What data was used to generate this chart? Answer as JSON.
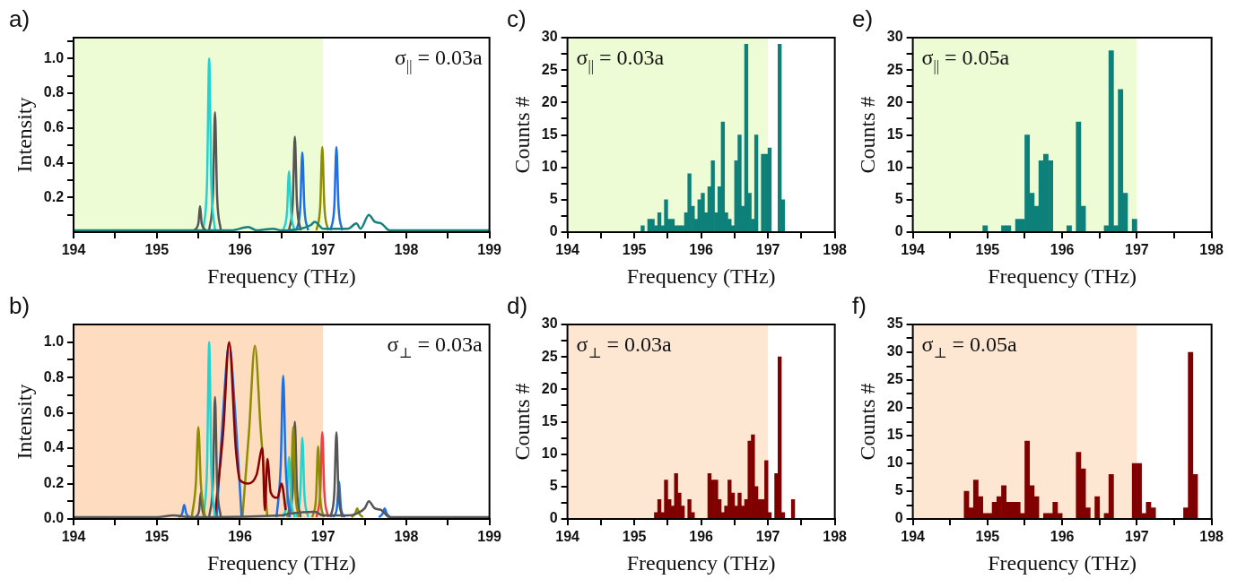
{
  "chart_data": [
    {
      "type": "line",
      "title": "a)",
      "xlabel": "Frequency (THz)",
      "ylabel": "Intensity",
      "annotations": [
        "σ$_{||}$ = 0.03a"
      ],
      "bands": [
        {
          "axis": "x",
          "from": 194,
          "to": 197,
          "color": "#eefcd6"
        }
      ],
      "xlim": [
        194,
        199
      ],
      "xticks": [
        194,
        {
          "value": 194.5,
          "label": null
        },
        195,
        {
          "value": 195.5,
          "label": null
        },
        196,
        {
          "value": 196.5,
          "label": null
        },
        197,
        {
          "value": 197.5,
          "label": null
        },
        198,
        {
          "value": 198.5,
          "label": null
        },
        199
      ],
      "ylim": [
        0,
        1.12
      ],
      "yticks": [
        {
          "value": 0.1,
          "label": null
        },
        {
          "value": 0.2,
          "label": "0.2"
        },
        {
          "value": 0.3,
          "label": null
        },
        {
          "value": 0.4,
          "label": "0.4"
        },
        {
          "value": 0.5,
          "label": null
        },
        {
          "value": 0.6,
          "label": "0.6"
        },
        {
          "value": 0.7,
          "label": null
        },
        {
          "value": 0.8,
          "label": "0.8"
        },
        {
          "value": 0.9,
          "label": null
        },
        {
          "value": 1,
          "label": "1.0"
        },
        {
          "value": 1.1,
          "label": null
        }
      ],
      "series": [
        {
          "color": "#15817c",
          "x": [
            194,
            195,
            195.5,
            195.9,
            196.1,
            196.2,
            196.4,
            196.5,
            196.85,
            196.9,
            197,
            197.3,
            197.4,
            197.45,
            197.55,
            197.62,
            197.7,
            197.8,
            198,
            199
          ],
          "values": [
            0.01,
            0.01,
            0.01,
            0.01,
            0.03,
            0.01,
            0.02,
            0.01,
            0.04,
            0.06,
            0.02,
            0.02,
            0.05,
            0.02,
            0.1,
            0.06,
            0.05,
            0.01,
            0.01,
            0.01
          ]
        },
        {
          "color": "#555555",
          "x": [
            195.45,
            195.5,
            195.52,
            195.54,
            195.59
          ],
          "values": [
            0.01,
            0.05,
            0.15,
            0.05,
            0.01
          ]
        },
        {
          "color": "#22d3cf",
          "x": [
            195.56,
            195.605,
            195.63,
            195.655,
            195.7
          ],
          "values": [
            0.01,
            0.3,
            1.0,
            0.3,
            0.01
          ]
        },
        {
          "color": "#555555",
          "x": [
            195.63,
            195.675,
            195.7,
            195.725,
            195.77
          ],
          "values": [
            0.01,
            0.21,
            0.69,
            0.21,
            0.01
          ]
        },
        {
          "color": "#22d3cf",
          "x": [
            196.52,
            196.565,
            196.59,
            196.615,
            196.66
          ],
          "values": [
            0.01,
            0.11,
            0.35,
            0.11,
            0.01
          ]
        },
        {
          "color": "#555555",
          "x": [
            196.59,
            196.635,
            196.66,
            196.685,
            196.73
          ],
          "values": [
            0.01,
            0.17,
            0.55,
            0.17,
            0.01
          ]
        },
        {
          "color": "#1f6fe3",
          "x": [
            196.68,
            196.725,
            196.75,
            196.775,
            196.82
          ],
          "values": [
            0.01,
            0.14,
            0.46,
            0.14,
            0.01
          ]
        },
        {
          "color": "#8e8c00",
          "x": [
            196.92,
            196.965,
            196.99,
            197.015,
            197.06
          ],
          "values": [
            0.01,
            0.15,
            0.49,
            0.15,
            0.01
          ]
        },
        {
          "color": "#1f6fe3",
          "x": [
            197.09,
            197.135,
            197.16,
            197.185,
            197.23
          ],
          "values": [
            0.01,
            0.15,
            0.49,
            0.15,
            0.01
          ]
        }
      ]
    },
    {
      "type": "histogram",
      "title": "c)",
      "xlabel": "Frequency (THz)",
      "ylabel": "Counts #",
      "annotations": [
        "σ$_{||}$ = 0.03a"
      ],
      "color": "#0e807a",
      "bands": [
        {
          "axis": "x",
          "from": 194,
          "to": 197,
          "color": "#eefcd6"
        }
      ],
      "xlim": [
        194,
        198
      ],
      "xticks": [
        194,
        {
          "value": 194.5,
          "label": null
        },
        195,
        {
          "value": 195.5,
          "label": null
        },
        196,
        {
          "value": 196.5,
          "label": null
        },
        197,
        {
          "value": 197.5,
          "label": null
        },
        198
      ],
      "ylim": [
        0,
        30
      ],
      "yticks": [
        0,
        {
          "value": 2.5,
          "label": null
        },
        5,
        {
          "value": 7.5,
          "label": null
        },
        10,
        {
          "value": 12.5,
          "label": null
        },
        15,
        {
          "value": 17.5,
          "label": null
        },
        20,
        {
          "value": 22.5,
          "label": null
        },
        25,
        {
          "value": 27.5,
          "label": null
        },
        30
      ],
      "bins": [
        195.1,
        195.15,
        195.2,
        195.25,
        195.3,
        195.35,
        195.4,
        195.45,
        195.5,
        195.55,
        195.6,
        195.65,
        195.7,
        195.75,
        195.8,
        195.85,
        195.9,
        195.95,
        196,
        196.05,
        196.1,
        196.15,
        196.2,
        196.25,
        196.3,
        196.35,
        196.4,
        196.45,
        196.5,
        196.55,
        196.6,
        196.65,
        196.7,
        196.75,
        196.8,
        196.85,
        196.9,
        196.95,
        197,
        197.05,
        197.1,
        197.15,
        197.2,
        197.25,
        197.3
      ],
      "values": [
        1,
        0,
        2,
        2,
        1,
        3,
        1,
        5,
        2,
        2,
        1,
        1,
        1,
        3,
        9,
        4,
        2,
        5,
        6,
        3,
        7,
        11,
        3,
        7,
        17,
        3,
        2,
        1,
        11,
        15,
        4,
        29,
        6,
        2,
        15,
        0,
        12,
        12,
        13,
        0,
        0,
        29,
        5,
        0
      ]
    },
    {
      "type": "histogram",
      "title": "e)",
      "xlabel": "Frequency (THz)",
      "ylabel": "Counts #",
      "annotations": [
        "σ$_{||}$ = 0.05a"
      ],
      "color": "#0e807a",
      "bands": [
        {
          "axis": "x",
          "from": 194,
          "to": 197,
          "color": "#eefcd6"
        }
      ],
      "xlim": [
        194,
        198
      ],
      "xticks": [
        194,
        {
          "value": 194.5,
          "label": null
        },
        195,
        {
          "value": 195.5,
          "label": null
        },
        196,
        {
          "value": 196.5,
          "label": null
        },
        197,
        {
          "value": 197.5,
          "label": null
        },
        198
      ],
      "ylim": [
        0,
        30
      ],
      "yticks": [
        0,
        {
          "value": 2.5,
          "label": null
        },
        5,
        {
          "value": 7.5,
          "label": null
        },
        10,
        {
          "value": 12.5,
          "label": null
        },
        15,
        {
          "value": 17.5,
          "label": null
        },
        20,
        {
          "value": 22.5,
          "label": null
        },
        25,
        {
          "value": 27.5,
          "label": null
        },
        30
      ],
      "bins": [
        194.9375,
        195,
        195.0625,
        195.125,
        195.1875,
        195.25,
        195.3125,
        195.375,
        195.4375,
        195.5,
        195.5625,
        195.625,
        195.6875,
        195.75,
        195.8125,
        195.875,
        195.9375,
        196,
        196.0625,
        196.125,
        196.1875,
        196.25,
        196.3125,
        196.375,
        196.4375,
        196.5,
        196.5625,
        196.625,
        196.6875,
        196.75,
        196.8125,
        196.875,
        196.9375,
        197
      ],
      "values": [
        1,
        0,
        0,
        0,
        1,
        1,
        0,
        2,
        2,
        15,
        6,
        4,
        11,
        12,
        11,
        0,
        0,
        0,
        1,
        0,
        17,
        4,
        0,
        0,
        0,
        0,
        1,
        28,
        1,
        22,
        6,
        0,
        2
      ]
    },
    {
      "type": "line",
      "title": "b)",
      "xlabel": "Frequency (THz)",
      "ylabel": "Intensity",
      "annotations": [
        "σ$_{⊥}$ = 0.03a"
      ],
      "bands": [
        {
          "axis": "x",
          "from": 194,
          "to": 197,
          "color": "#fddcbf"
        }
      ],
      "xlim": [
        194,
        199
      ],
      "xticks": [
        194,
        {
          "value": 194.5,
          "label": null
        },
        195,
        {
          "value": 195.5,
          "label": null
        },
        196,
        {
          "value": 196.5,
          "label": null
        },
        197,
        {
          "value": 197.5,
          "label": null
        },
        198,
        {
          "value": 198.5,
          "label": null
        },
        199
      ],
      "ylim": [
        0,
        1.1
      ],
      "yticks": [
        {
          "value": 0,
          "label": "0.0"
        },
        {
          "value": 0.1,
          "label": null
        },
        {
          "value": 0.2,
          "label": "0.2"
        },
        {
          "value": 0.3,
          "label": null
        },
        {
          "value": 0.4,
          "label": "0.4"
        },
        {
          "value": 0.5,
          "label": null
        },
        {
          "value": 0.6,
          "label": "0.6"
        },
        {
          "value": 0.7,
          "label": null
        },
        {
          "value": 0.8,
          "label": "0.8"
        },
        {
          "value": 0.9,
          "label": null
        },
        {
          "value": 1,
          "label": "1.0"
        }
      ],
      "series": [
        {
          "color": "#555555",
          "x": [
            194,
            195,
            195.2,
            195.4,
            196.5,
            196.6,
            196.9,
            197,
            197.3,
            197.4,
            197.5,
            197.55,
            197.62,
            197.7,
            197.8,
            198,
            199
          ],
          "values": [
            0.01,
            0.01,
            0.02,
            0.01,
            0.02,
            0.03,
            0.04,
            0.02,
            0.02,
            0.03,
            0.06,
            0.1,
            0.06,
            0.05,
            0.01,
            0.01,
            0.01
          ]
        },
        {
          "color": "#1f6fe3",
          "x": [
            195.26,
            195.305,
            195.33,
            195.355,
            195.4
          ],
          "values": [
            0.01,
            0.03,
            0.08,
            0.03,
            0.01
          ]
        },
        {
          "color": "#8e8c00",
          "x": [
            195.42,
            195.47,
            195.5,
            195.53,
            195.58
          ],
          "values": [
            0.01,
            0.2,
            0.52,
            0.2,
            0.01
          ]
        },
        {
          "color": "#555555",
          "x": [
            195.47,
            195.51,
            195.53,
            195.55,
            195.59
          ],
          "values": [
            0.01,
            0.05,
            0.15,
            0.05,
            0.01
          ]
        },
        {
          "color": "#22d3cf",
          "x": [
            195.56,
            195.605,
            195.63,
            195.655,
            195.7
          ],
          "values": [
            0.01,
            0.3,
            1.0,
            0.3,
            0.01
          ]
        },
        {
          "color": "#555555",
          "x": [
            195.63,
            195.675,
            195.7,
            195.725,
            195.77
          ],
          "values": [
            0.01,
            0.21,
            0.69,
            0.21,
            0.01
          ]
        },
        {
          "color": "#8b0000",
          "x": [
            195.7,
            195.8,
            195.87,
            195.95,
            196,
            196.1,
            196.2,
            196.27,
            196.3,
            196.33,
            196.37,
            196.45,
            196.5,
            196.55
          ],
          "values": [
            0.02,
            0.5,
            1.0,
            0.4,
            0.22,
            0.2,
            0.25,
            0.4,
            0.05,
            0.34,
            0.15,
            0.12,
            0.2,
            0.05
          ]
        },
        {
          "color": "#1f6fe3",
          "x": [
            195.72,
            195.8,
            195.87,
            195.94,
            196.02
          ],
          "values": [
            0.01,
            0.62,
            0.99,
            0.62,
            0.01
          ]
        },
        {
          "color": "#8e8c00",
          "x": [
            196.03,
            196.11,
            196.18,
            196.25,
            196.33
          ],
          "values": [
            0.01,
            0.5,
            0.98,
            0.5,
            0.01
          ]
        },
        {
          "color": "#1f6fe3",
          "x": [
            196.44,
            196.49,
            196.52,
            196.55,
            196.6
          ],
          "values": [
            0.01,
            0.3,
            0.81,
            0.3,
            0.01
          ]
        },
        {
          "color": "#22d3cf",
          "x": [
            196.52,
            196.565,
            196.59,
            196.615,
            196.66
          ],
          "values": [
            0.01,
            0.11,
            0.35,
            0.11,
            0.01
          ]
        },
        {
          "color": "#8e8c00",
          "x": [
            196.57,
            196.615,
            196.64,
            196.665,
            196.71
          ],
          "values": [
            0.01,
            0.16,
            0.52,
            0.16,
            0.01
          ]
        },
        {
          "color": "#555555",
          "x": [
            196.59,
            196.635,
            196.66,
            196.685,
            196.73
          ],
          "values": [
            0.01,
            0.17,
            0.55,
            0.17,
            0.01
          ]
        },
        {
          "color": "#22d3cf",
          "x": [
            196.68,
            196.725,
            196.75,
            196.775,
            196.82
          ],
          "values": [
            0.01,
            0.14,
            0.46,
            0.14,
            0.01
          ]
        },
        {
          "color": "#8e8c00",
          "x": [
            196.87,
            196.915,
            196.94,
            196.965,
            197.01
          ],
          "values": [
            0.01,
            0.12,
            0.41,
            0.12,
            0.01
          ]
        },
        {
          "color": "#f04040",
          "x": [
            196.92,
            196.965,
            196.99,
            197.015,
            197.06
          ],
          "values": [
            0.01,
            0.15,
            0.49,
            0.15,
            0.01
          ]
        },
        {
          "color": "#555555",
          "x": [
            197.09,
            197.135,
            197.16,
            197.185,
            197.23
          ],
          "values": [
            0.01,
            0.15,
            0.49,
            0.15,
            0.01
          ]
        },
        {
          "color": "#1f6fe3",
          "x": [
            197.12,
            197.165,
            197.19,
            197.215,
            197.26
          ],
          "values": [
            0.01,
            0.06,
            0.21,
            0.06,
            0.01
          ]
        },
        {
          "color": "#8e8c00",
          "x": [
            197.34,
            197.385,
            197.41,
            197.435,
            197.48
          ],
          "values": [
            0.01,
            0.03,
            0.06,
            0.03,
            0.01
          ]
        },
        {
          "color": "#1f6fe3",
          "x": [
            197.67,
            197.715,
            197.74,
            197.765,
            197.81
          ],
          "values": [
            0.01,
            0.03,
            0.06,
            0.03,
            0.01
          ]
        }
      ]
    },
    {
      "type": "histogram",
      "title": "d)",
      "xlabel": "Frequency (THz)",
      "ylabel": "Counts #",
      "annotations": [
        "σ$_{⊥}$ = 0.03a"
      ],
      "color": "#800000",
      "bands": [
        {
          "axis": "x",
          "from": 194,
          "to": 197,
          "color": "#fde6d2"
        }
      ],
      "xlim": [
        194,
        198
      ],
      "xticks": [
        194,
        {
          "value": 194.5,
          "label": null
        },
        195,
        {
          "value": 195.5,
          "label": null
        },
        196,
        {
          "value": 196.5,
          "label": null
        },
        197,
        {
          "value": 197.5,
          "label": null
        },
        198
      ],
      "ylim": [
        0,
        30
      ],
      "yticks": [
        0,
        {
          "value": 2.5,
          "label": null
        },
        5,
        {
          "value": 7.5,
          "label": null
        },
        10,
        {
          "value": 12.5,
          "label": null
        },
        15,
        {
          "value": 17.5,
          "label": null
        },
        20,
        {
          "value": 22.5,
          "label": null
        },
        25,
        {
          "value": 27.5,
          "label": null
        },
        30
      ],
      "bins": [
        195.3,
        195.35,
        195.4,
        195.45,
        195.5,
        195.55,
        195.6,
        195.65,
        195.7,
        195.75,
        195.8,
        195.85,
        195.9,
        195.95,
        196,
        196.05,
        196.1,
        196.15,
        196.2,
        196.25,
        196.3,
        196.35,
        196.4,
        196.45,
        196.5,
        196.55,
        196.6,
        196.65,
        196.7,
        196.75,
        196.8,
        196.85,
        196.9,
        196.95,
        197,
        197.05,
        197.1,
        197.15,
        197.2,
        197.25,
        197.3,
        197.35,
        197.4
      ],
      "values": [
        1,
        3,
        1,
        6,
        3,
        2,
        7,
        4,
        2,
        0,
        3,
        1,
        0,
        0,
        0,
        0,
        7,
        6,
        6,
        3,
        1,
        2,
        6,
        4,
        2,
        4,
        2,
        3,
        12,
        13,
        5,
        3,
        3,
        9,
        1,
        0,
        7,
        25,
        1,
        0,
        0,
        3
      ]
    },
    {
      "type": "histogram",
      "title": "f)",
      "xlabel": "Frequency (THz)",
      "ylabel": "Counts #",
      "annotations": [
        "σ$_{⊥}$ = 0.05a"
      ],
      "color": "#800000",
      "bands": [
        {
          "axis": "x",
          "from": 194,
          "to": 197,
          "color": "#fde6d2"
        }
      ],
      "xlim": [
        194,
        198
      ],
      "xticks": [
        194,
        {
          "value": 194.5,
          "label": null
        },
        195,
        {
          "value": 195.5,
          "label": null
        },
        196,
        {
          "value": 196.5,
          "label": null
        },
        197,
        {
          "value": 197.5,
          "label": null
        },
        198
      ],
      "ylim": [
        0,
        35
      ],
      "yticks": [
        0,
        {
          "value": 2.5,
          "label": null
        },
        5,
        {
          "value": 7.5,
          "label": null
        },
        10,
        {
          "value": 12.5,
          "label": null
        },
        15,
        {
          "value": 17.5,
          "label": null
        },
        20,
        {
          "value": 22.5,
          "label": null
        },
        25,
        {
          "value": 27.5,
          "label": null
        },
        30,
        {
          "value": 32.5,
          "label": null
        },
        35
      ],
      "bins": [
        194.6875,
        194.75,
        194.8125,
        194.875,
        194.9375,
        195,
        195.0625,
        195.125,
        195.1875,
        195.25,
        195.3125,
        195.375,
        195.4375,
        195.5,
        195.5625,
        195.625,
        195.6875,
        195.75,
        195.8125,
        195.875,
        195.9375,
        196,
        196.0625,
        196.125,
        196.1875,
        196.25,
        196.3125,
        196.375,
        196.4375,
        196.5,
        196.5625,
        196.625,
        196.6875,
        196.75,
        196.8125,
        196.875,
        196.9375,
        197,
        197.0625,
        197.125,
        197.1875,
        197.25,
        197.3125,
        197.375,
        197.4375,
        197.5,
        197.5625,
        197.625,
        197.6875,
        197.75,
        197.8125
      ],
      "values": [
        5,
        2,
        7,
        4,
        1,
        1,
        3,
        4,
        6,
        3,
        3,
        3,
        1,
        14,
        6,
        4,
        0,
        1,
        1,
        3,
        1,
        0,
        0,
        0,
        12,
        9,
        2,
        0,
        4,
        0,
        1,
        8,
        0,
        0,
        0,
        0,
        10,
        10,
        1,
        3,
        2,
        0,
        0,
        0,
        0,
        0,
        0,
        2,
        30,
        8
      ]
    }
  ]
}
